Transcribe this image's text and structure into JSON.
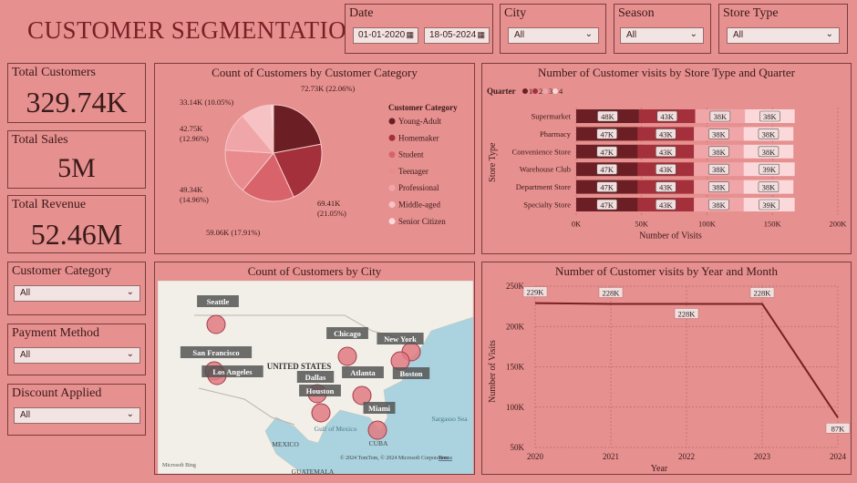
{
  "header": {
    "title": "CUSTOMER SEGMENTATION"
  },
  "filters": {
    "date": {
      "label": "Date",
      "start": "01-01-2020",
      "end": "18-05-2024"
    },
    "city": {
      "label": "City",
      "value": "All"
    },
    "season": {
      "label": "Season",
      "value": "All"
    },
    "store_type": {
      "label": "Store Type",
      "value": "All"
    }
  },
  "kpis": {
    "total_customers": {
      "label": "Total Customers",
      "value": "329.74K"
    },
    "total_sales": {
      "label": "Total Sales",
      "value": "5M"
    },
    "total_revenue": {
      "label": "Total Revenue",
      "value": "52.46M"
    }
  },
  "slicers": {
    "customer_category": {
      "label": "Customer Category",
      "value": "All"
    },
    "payment_method": {
      "label": "Payment Method",
      "value": "All"
    },
    "discount_applied": {
      "label": "Discount Applied",
      "value": "All"
    }
  },
  "map": {
    "title": "Count of Customers by City",
    "country_label": "UNITED STATES",
    "places": [
      "Gulf of Mexico",
      "MEXICO",
      "CUBA",
      "GUATEMALA",
      "Sargasso Sea"
    ],
    "cities": [
      "Seattle",
      "San Francisco",
      "Los Angeles",
      "Chicago",
      "New York",
      "Boston",
      "Dallas",
      "Houston",
      "Atlanta",
      "Miami"
    ],
    "attribution": "© 2024 TomTom, © 2024 Microsoft Corporation",
    "terms": "Terms",
    "logo": "Microsoft Bing"
  },
  "colors": {
    "background": "#e6908f",
    "slices": [
      "#6b1f24",
      "#a3303a",
      "#d9636a",
      "#e88a8e",
      "#f0a6a9",
      "#f7c2c4",
      "#fbd9da"
    ],
    "line": "#7a1f25"
  },
  "chart_data": [
    {
      "type": "pie",
      "title": "Count of Customers by Customer Category",
      "legend_title": "Customer Category",
      "legend_position": "right",
      "categories": [
        "Young-Adult",
        "Homemaker",
        "Student",
        "Teenager",
        "Professional",
        "Middle-aged",
        "Senior Citizen"
      ],
      "values": [
        72730,
        69410,
        59060,
        49340,
        42750,
        33140,
        3310
      ],
      "labels": [
        "72.73K (22.06%)",
        "69.41K (21.05%)",
        "59.06K (17.91%)",
        "49.34K (14.96%)",
        "42.75K (12.96%)",
        "33.14K (10.05%)",
        ""
      ]
    },
    {
      "type": "bar",
      "orientation": "horizontal",
      "stacked": true,
      "title": "Number of Customer visits by Store Type and Quarter",
      "xlabel": "Number of Visits",
      "ylabel": "Store Type",
      "legend_title": "Quarter",
      "legend_position": "top-left",
      "categories": [
        "Supermarket",
        "Pharmacy",
        "Convenience Store",
        "Warehouse Club",
        "Department Store",
        "Specialty Store"
      ],
      "series": [
        {
          "name": "1",
          "values": [
            48,
            47,
            47,
            47,
            47,
            47
          ],
          "labels": [
            "48K",
            "47K",
            "47K",
            "47K",
            "47K",
            "47K"
          ]
        },
        {
          "name": "2",
          "values": [
            43,
            43,
            43,
            43,
            43,
            43
          ],
          "labels": [
            "43K",
            "43K",
            "43K",
            "43K",
            "43K",
            "43K"
          ]
        },
        {
          "name": "3",
          "values": [
            38,
            38,
            38,
            38,
            38,
            38
          ],
          "labels": [
            "38K",
            "38K",
            "38K",
            "38K",
            "38K",
            "38K"
          ]
        },
        {
          "name": "4",
          "values": [
            38,
            38,
            38,
            39,
            38,
            39
          ],
          "labels": [
            "38K",
            "38K",
            "38K",
            "39K",
            "38K",
            "39K"
          ]
        }
      ],
      "xlim": [
        0,
        200
      ],
      "xticks": [
        "0K",
        "50K",
        "100K",
        "150K",
        "200K"
      ],
      "grid": true
    },
    {
      "type": "line",
      "title": "Number of Customer visits by Year and Month",
      "xlabel": "Year",
      "ylabel": "Number of Visits",
      "x": [
        2020,
        2021,
        2022,
        2023,
        2024
      ],
      "values": [
        229,
        228,
        228,
        228,
        87
      ],
      "labels": [
        "229K",
        "228K",
        "228K",
        "228K",
        "87K"
      ],
      "ylim": [
        50,
        250
      ],
      "yticks": [
        "50K",
        "100K",
        "150K",
        "200K",
        "250K"
      ],
      "xticks": [
        "2020",
        "2021",
        "2022",
        "2023",
        "2024"
      ],
      "grid": true
    }
  ]
}
